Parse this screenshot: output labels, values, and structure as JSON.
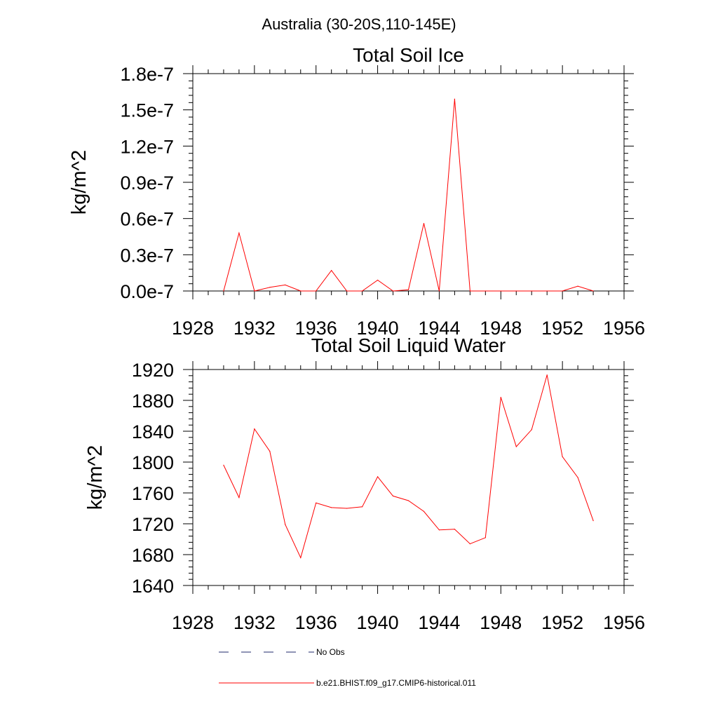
{
  "page_title": "Australia (30-20S,110-145E)",
  "colors": {
    "model": "#ff0000",
    "obs": "#1f2a6b",
    "axis": "#000000"
  },
  "legend": {
    "items": [
      {
        "label": "No Obs",
        "style": "dashed",
        "color": "#1f2a6b"
      },
      {
        "label": "b.e21.BHIST.f09_g17.CMIP6-historical.011",
        "style": "solid",
        "color": "#ff0000"
      }
    ]
  },
  "chart_data": [
    {
      "type": "line",
      "title": "Total Soil Ice",
      "ylabel": "kg/m^2",
      "xlabel": "",
      "xlim": [
        1928,
        1956
      ],
      "ylim": [
        0,
        1.8e-07
      ],
      "xticks": [
        1928,
        1932,
        1936,
        1940,
        1944,
        1948,
        1952,
        1956
      ],
      "xtick_labels": [
        "1928",
        "1932",
        "1936",
        "1940",
        "1944",
        "1948",
        "1952",
        "1956"
      ],
      "yticks": [
        0,
        3e-08,
        6e-08,
        9e-08,
        1.2e-07,
        1.5e-07,
        1.8e-07
      ],
      "ytick_labels": [
        "0.0e-7",
        "0.3e-7",
        "0.6e-7",
        "0.9e-7",
        "1.2e-7",
        "1.5e-7",
        "1.8e-7"
      ],
      "series": [
        {
          "name": "b.e21.BHIST.f09_g17.CMIP6-historical.011",
          "x": [
            1930,
            1931,
            1932,
            1933,
            1934,
            1935,
            1936,
            1937,
            1938,
            1939,
            1940,
            1941,
            1942,
            1943,
            1944,
            1945,
            1946,
            1947,
            1948,
            1949,
            1950,
            1951,
            1952,
            1953,
            1954
          ],
          "values": [
            0,
            4.8e-08,
            0,
            3e-09,
            5e-09,
            0,
            0,
            1.7e-08,
            0,
            0,
            9e-09,
            0,
            1e-09,
            5.6e-08,
            0,
            1.59e-07,
            0,
            0,
            0,
            0,
            0,
            0,
            0,
            4e-09,
            0
          ]
        }
      ]
    },
    {
      "type": "line",
      "title": "Total Soil Liquid Water",
      "ylabel": "kg/m^2",
      "xlabel": "",
      "xlim": [
        1928,
        1956
      ],
      "ylim": [
        1640,
        1920
      ],
      "xticks": [
        1928,
        1932,
        1936,
        1940,
        1944,
        1948,
        1952,
        1956
      ],
      "xtick_labels": [
        "1928",
        "1932",
        "1936",
        "1940",
        "1944",
        "1948",
        "1952",
        "1956"
      ],
      "yticks": [
        1640,
        1680,
        1720,
        1760,
        1800,
        1840,
        1880,
        1920
      ],
      "ytick_labels": [
        "1640",
        "1680",
        "1720",
        "1760",
        "1800",
        "1840",
        "1880",
        "1920"
      ],
      "series": [
        {
          "name": "b.e21.BHIST.f09_g17.CMIP6-historical.011",
          "x": [
            1930,
            1931,
            1932,
            1933,
            1934,
            1935,
            1936,
            1937,
            1938,
            1939,
            1940,
            1941,
            1942,
            1943,
            1944,
            1945,
            1946,
            1947,
            1948,
            1949,
            1950,
            1951,
            1952,
            1953,
            1954
          ],
          "values": [
            1796,
            1754,
            1843,
            1814,
            1719,
            1676,
            1747,
            1741,
            1740,
            1742,
            1781,
            1756,
            1750,
            1736,
            1712,
            1713,
            1694,
            1702,
            1884,
            1820,
            1842,
            1913,
            1807,
            1780,
            1724
          ]
        }
      ]
    }
  ]
}
